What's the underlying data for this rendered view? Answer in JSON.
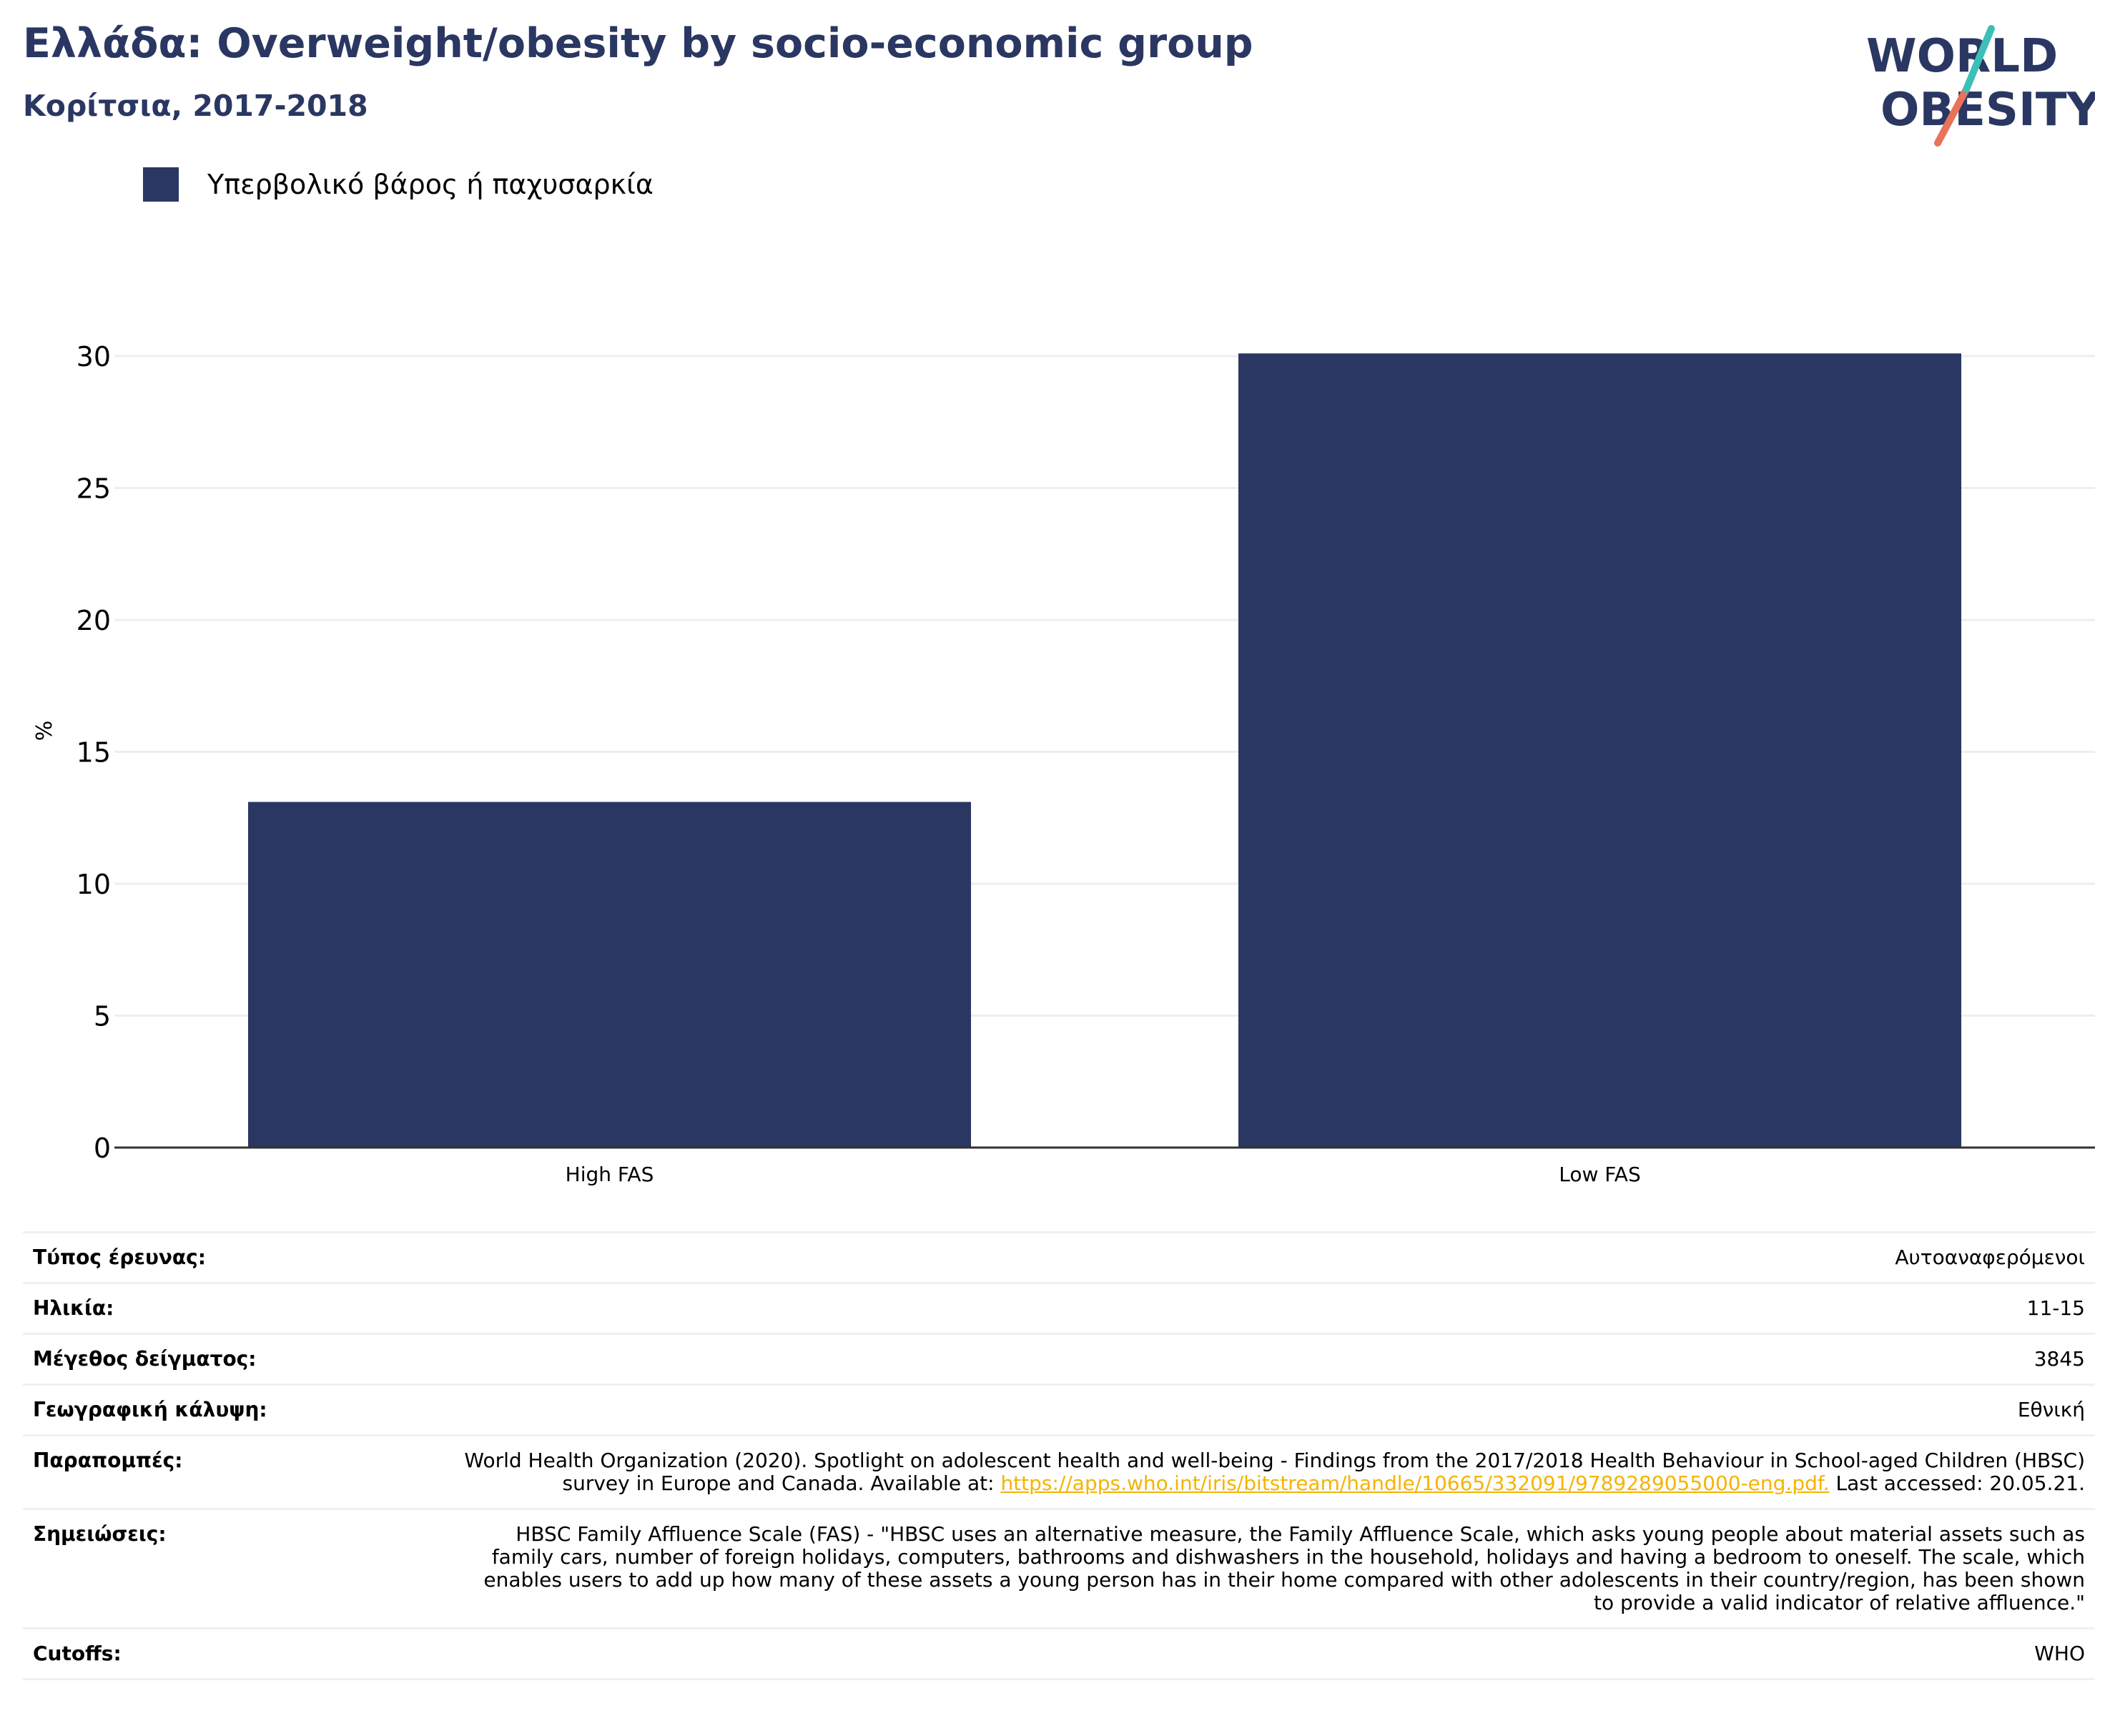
{
  "header": {
    "title": "Ελλάδα: Overweight/obesity by socio-economic group",
    "subtitle": "Κορίτσια, 2017-2018"
  },
  "logo": {
    "line1": "WORLD",
    "line2": "OBESITY"
  },
  "legend": {
    "label": "Υπερβολικό βάρος ή παχυσαρκία",
    "color": "#2a3762"
  },
  "chart_data": {
    "type": "bar",
    "categories": [
      "High FAS",
      "Low FAS"
    ],
    "series": [
      {
        "name": "Υπερβολικό βάρος ή παχυσαρκία",
        "values": [
          13.1,
          30.1
        ]
      }
    ],
    "ylabel": "%",
    "xlabel": "",
    "ylim": [
      0,
      32
    ],
    "yticks": [
      0,
      5,
      10,
      15,
      20,
      25,
      30
    ],
    "grid": true,
    "legend_position": "top-left",
    "bar_color": "#2a3762"
  },
  "meta": {
    "survey_type": {
      "key": "Τύπος έρευνας:",
      "value": "Αυτοαναφερόμενοι"
    },
    "age": {
      "key": "Ηλικία:",
      "value": "11-15"
    },
    "sample_size": {
      "key": "Μέγεθος δείγματος:",
      "value": "3845"
    },
    "coverage": {
      "key": "Γεωγραφική κάλυψη:",
      "value": "Εθνική"
    },
    "references": {
      "key": "Παραπομπές:",
      "text_before": "World Health Organization (2020). Spotlight on adolescent health and well-being - Findings from the 2017/2018 Health Behaviour in School-aged Children (HBSC) survey in Europe and Canada. Available at: ",
      "link": "https://apps.who.int/iris/bitstream/handle/10665/332091/9789289055000-eng.pdf.",
      "text_after": " Last accessed: 20.05.21."
    },
    "notes": {
      "key": "Σημειώσεις:",
      "value": "HBSC Family Affluence Scale (FAS) - \"HBSC uses an alternative measure, the Family Affluence Scale, which asks young people about material assets such as family cars, number of foreign holidays, computers, bathrooms and dishwashers in the household, holidays and having a bedroom to oneself. The scale, which enables users to add up how many of these assets a young person has in their home compared with other adolescents in their country/region, has been shown to provide a valid indicator of relative affluence.\""
    },
    "cutoffs": {
      "key": "Cutoffs:",
      "value": "WHO"
    }
  }
}
